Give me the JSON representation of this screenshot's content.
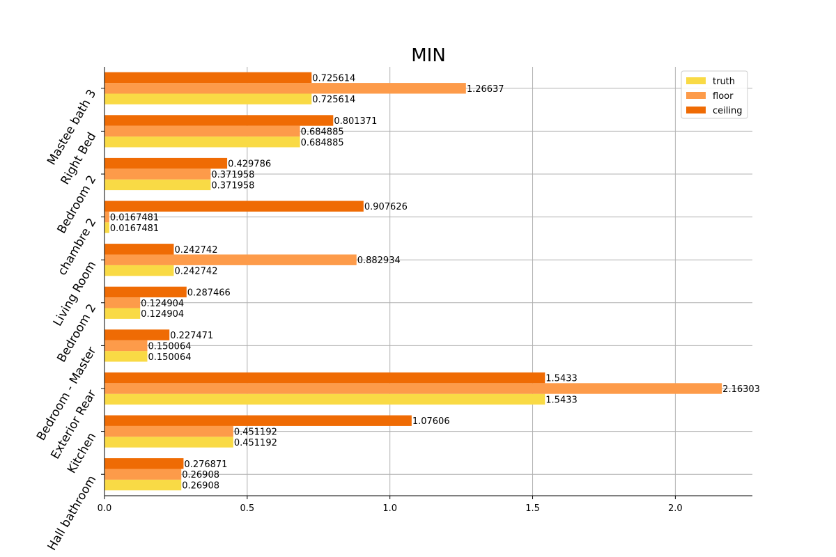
{
  "chart_data": {
    "type": "bar",
    "orientation": "horizontal",
    "title": "MIN",
    "xlabel": "",
    "ylabel": "",
    "xlim": [
      0,
      2.27
    ],
    "xticks": [
      "0.0",
      "0.5",
      "1.0",
      "1.5",
      "2.0"
    ],
    "grid": true,
    "legend_position": "top-right",
    "categories": [
      "Hall bathroom",
      "Kitchen",
      "Exterior Rear",
      "Bedroom - Master",
      "Bedroom 2",
      "Living Room",
      "chambre 2",
      "Bedroom 2",
      "Right Bed",
      "Mastee bath 3"
    ],
    "series": [
      {
        "name": "truth",
        "color": "#f9da45",
        "values": [
          0.26908,
          0.451192,
          1.5433,
          0.150064,
          0.124904,
          0.242742,
          0.0167481,
          0.371958,
          0.684885,
          0.725614
        ],
        "labels": [
          "0.26908",
          "0.451192",
          "1.5433",
          "0.150064",
          "0.124904",
          "0.242742",
          "0.0167481",
          "0.371958",
          "0.684885",
          "0.725614"
        ]
      },
      {
        "name": "floor",
        "color": "#fd9b4a",
        "values": [
          0.26908,
          0.451192,
          2.16303,
          0.150064,
          0.124904,
          0.882934,
          0.0167481,
          0.371958,
          0.684885,
          1.26637
        ],
        "labels": [
          "0.26908",
          "0.451192",
          "2.16303",
          "0.150064",
          "0.124904",
          "0.882934",
          "0.0167481",
          "0.371958",
          "0.684885",
          "1.26637"
        ]
      },
      {
        "name": "ceiling",
        "color": "#ef6b04",
        "values": [
          0.276871,
          1.07606,
          1.5433,
          0.227471,
          0.287466,
          0.242742,
          0.907626,
          0.429786,
          0.801371,
          0.725614
        ],
        "labels": [
          "0.276871",
          "1.07606",
          "1.5433",
          "0.227471",
          "0.287466",
          "0.242742",
          "0.907626",
          "0.429786",
          "0.801371",
          "0.725614"
        ]
      }
    ]
  }
}
